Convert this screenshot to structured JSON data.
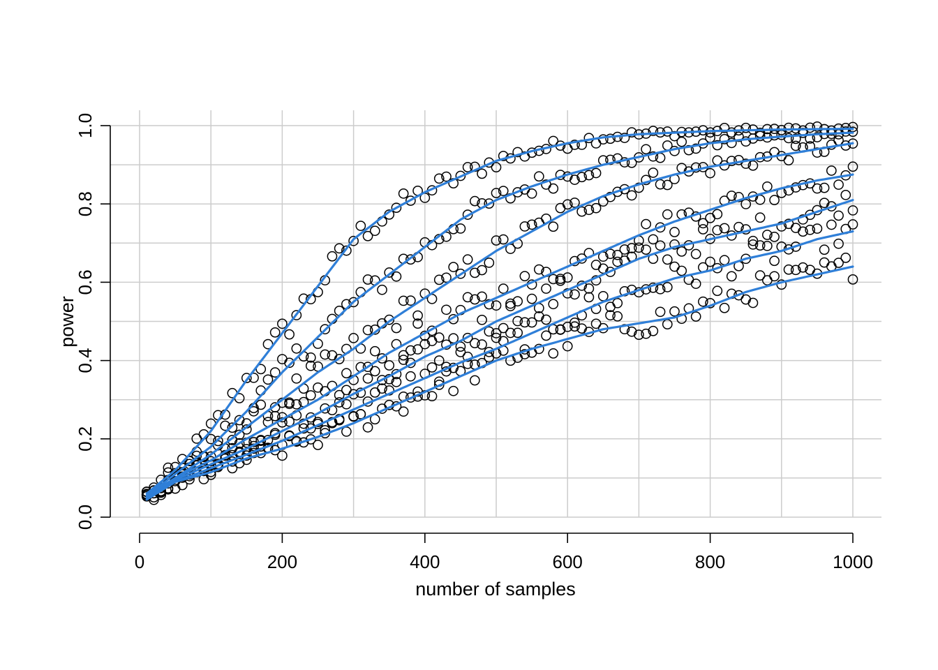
{
  "chart_data": {
    "type": "scatter",
    "xlabel": "number of samples",
    "ylabel": "power",
    "xlim": [
      0,
      1000
    ],
    "ylim": [
      0,
      1
    ],
    "grid": true,
    "x_ticks": [
      0,
      200,
      400,
      600,
      800,
      1000
    ],
    "x_tick_labels": [
      "0",
      "200",
      "400",
      "600",
      "800",
      "1000"
    ],
    "y_ticks": [
      0,
      0.2,
      0.4,
      0.6,
      0.8,
      1.0
    ],
    "y_tick_labels": [
      "0.0",
      "0.2",
      "0.4",
      "0.6",
      "0.8",
      "1.0"
    ],
    "point_style": "open-circle",
    "fit_line_color": "#2f7fd8",
    "series": [
      {
        "x": [
          10,
          50,
          100,
          150,
          200,
          250,
          300,
          350,
          400,
          450,
          500,
          550,
          600,
          650,
          700,
          750,
          800,
          850,
          900,
          950,
          1000
        ],
        "values": [
          0.06,
          0.12,
          0.22,
          0.35,
          0.47,
          0.59,
          0.71,
          0.78,
          0.83,
          0.87,
          0.91,
          0.935,
          0.955,
          0.97,
          0.978,
          0.982,
          0.986,
          0.988,
          0.99,
          0.991,
          0.992
        ]
      },
      {
        "x": [
          10,
          50,
          100,
          150,
          200,
          250,
          300,
          350,
          400,
          450,
          500,
          550,
          600,
          650,
          700,
          750,
          800,
          850,
          900,
          950,
          1000
        ],
        "values": [
          0.055,
          0.11,
          0.18,
          0.27,
          0.37,
          0.46,
          0.55,
          0.62,
          0.69,
          0.76,
          0.81,
          0.845,
          0.875,
          0.9,
          0.92,
          0.94,
          0.955,
          0.965,
          0.972,
          0.978,
          0.982
        ]
      },
      {
        "x": [
          10,
          50,
          100,
          150,
          200,
          250,
          300,
          350,
          400,
          450,
          500,
          550,
          600,
          650,
          700,
          750,
          800,
          850,
          900,
          950,
          1000
        ],
        "values": [
          0.055,
          0.1,
          0.16,
          0.23,
          0.3,
          0.37,
          0.43,
          0.5,
          0.56,
          0.62,
          0.68,
          0.73,
          0.78,
          0.82,
          0.85,
          0.875,
          0.895,
          0.91,
          0.925,
          0.94,
          0.955
        ]
      },
      {
        "x": [
          10,
          50,
          100,
          150,
          200,
          250,
          300,
          350,
          400,
          450,
          500,
          550,
          600,
          650,
          700,
          750,
          800,
          850,
          900,
          950,
          1000
        ],
        "values": [
          0.05,
          0.1,
          0.145,
          0.2,
          0.25,
          0.3,
          0.36,
          0.42,
          0.47,
          0.52,
          0.56,
          0.6,
          0.64,
          0.68,
          0.72,
          0.755,
          0.785,
          0.815,
          0.84,
          0.86,
          0.875
        ]
      },
      {
        "x": [
          10,
          50,
          100,
          150,
          200,
          250,
          300,
          350,
          400,
          450,
          500,
          550,
          600,
          650,
          700,
          750,
          800,
          850,
          900,
          950,
          1000
        ],
        "values": [
          0.05,
          0.095,
          0.135,
          0.175,
          0.22,
          0.265,
          0.315,
          0.36,
          0.41,
          0.45,
          0.5,
          0.54,
          0.58,
          0.62,
          0.66,
          0.69,
          0.71,
          0.73,
          0.75,
          0.78,
          0.81
        ]
      },
      {
        "x": [
          10,
          50,
          100,
          150,
          200,
          250,
          300,
          350,
          400,
          450,
          500,
          550,
          600,
          650,
          700,
          750,
          800,
          850,
          900,
          950,
          1000
        ],
        "values": [
          0.05,
          0.09,
          0.125,
          0.16,
          0.195,
          0.235,
          0.275,
          0.315,
          0.355,
          0.395,
          0.43,
          0.47,
          0.51,
          0.55,
          0.58,
          0.61,
          0.63,
          0.66,
          0.68,
          0.71,
          0.73
        ]
      },
      {
        "x": [
          10,
          50,
          100,
          150,
          200,
          250,
          300,
          350,
          400,
          450,
          500,
          550,
          600,
          650,
          700,
          750,
          800,
          850,
          900,
          950,
          1000
        ],
        "values": [
          0.045,
          0.09,
          0.115,
          0.15,
          0.175,
          0.205,
          0.24,
          0.28,
          0.32,
          0.36,
          0.4,
          0.43,
          0.455,
          0.48,
          0.495,
          0.51,
          0.54,
          0.575,
          0.6,
          0.62,
          0.64
        ]
      }
    ]
  }
}
